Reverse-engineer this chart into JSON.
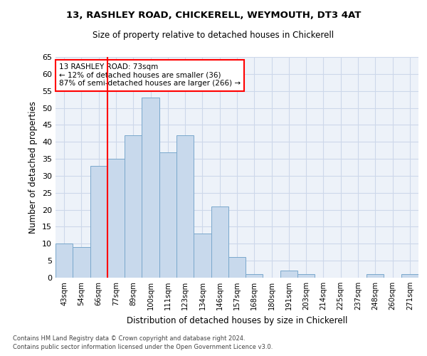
{
  "title1": "13, RASHLEY ROAD, CHICKERELL, WEYMOUTH, DT3 4AT",
  "title2": "Size of property relative to detached houses in Chickerell",
  "xlabel": "Distribution of detached houses by size in Chickerell",
  "ylabel": "Number of detached properties",
  "categories": [
    "43sqm",
    "54sqm",
    "66sqm",
    "77sqm",
    "89sqm",
    "100sqm",
    "111sqm",
    "123sqm",
    "134sqm",
    "146sqm",
    "157sqm",
    "168sqm",
    "180sqm",
    "191sqm",
    "203sqm",
    "214sqm",
    "225sqm",
    "237sqm",
    "248sqm",
    "260sqm",
    "271sqm"
  ],
  "values": [
    10,
    9,
    33,
    35,
    42,
    53,
    37,
    42,
    13,
    21,
    6,
    1,
    0,
    2,
    1,
    0,
    0,
    0,
    1,
    0,
    1
  ],
  "bar_color": "#c8d9ec",
  "bar_edge_color": "#7aa8cc",
  "annotation_text": "13 RASHLEY ROAD: 73sqm\n← 12% of detached houses are smaller (36)\n87% of semi-detached houses are larger (266) →",
  "annotation_box_color": "white",
  "annotation_box_edge_color": "red",
  "vline_color": "red",
  "vline_pos": 2.5,
  "ylim": [
    0,
    65
  ],
  "yticks": [
    0,
    5,
    10,
    15,
    20,
    25,
    30,
    35,
    40,
    45,
    50,
    55,
    60,
    65
  ],
  "grid_color": "#cdd8ea",
  "background_color": "#edf2f9",
  "footer1": "Contains HM Land Registry data © Crown copyright and database right 2024.",
  "footer2": "Contains public sector information licensed under the Open Government Licence v3.0."
}
